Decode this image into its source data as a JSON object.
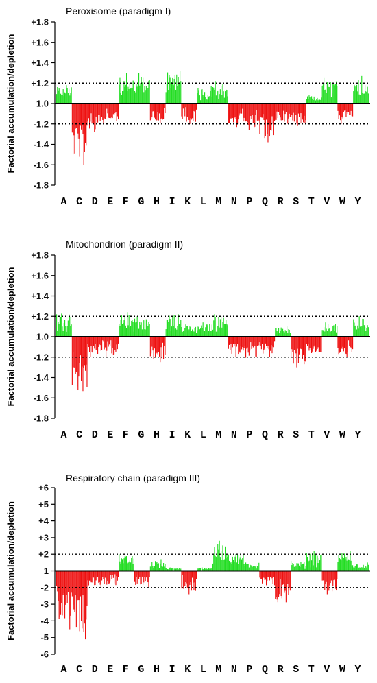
{
  "chart_data": [
    {
      "type": "bar",
      "title": "Peroxisome (paradigm I)",
      "ylabel": "Factorial accumulation/depletion",
      "xlabel": "",
      "y_tick_labels": [
        "+1.8",
        "+1.6",
        "+1.4",
        "+1.2",
        "1.0",
        "-1.2",
        "-1.4",
        "-1.6",
        "-1.8"
      ],
      "y_tick_values": [
        1.8,
        1.6,
        1.4,
        1.2,
        1.0,
        -1.2,
        -1.4,
        -1.6,
        -1.8
      ],
      "thresholds": [
        1.2,
        -1.2
      ],
      "baseline": 1.0,
      "categories": [
        "A",
        "C",
        "D",
        "E",
        "F",
        "G",
        "H",
        "I",
        "K",
        "L",
        "M",
        "N",
        "P",
        "Q",
        "R",
        "S",
        "T",
        "V",
        "W",
        "Y"
      ],
      "category_peak_values": [
        1.18,
        -1.6,
        -1.28,
        -1.16,
        1.3,
        1.3,
        -1.14,
        1.36,
        -1.2,
        1.17,
        1.22,
        -1.23,
        -1.3,
        -1.38,
        -1.18,
        -1.22,
        1.08,
        1.25,
        -1.2,
        1.27
      ],
      "colors": {
        "accumulation": "#22dd22",
        "depletion": "#ee1111"
      }
    },
    {
      "type": "bar",
      "title": "Mitochondrion (paradigm II)",
      "ylabel": "Factorial accumulation/depletion",
      "xlabel": "",
      "y_tick_labels": [
        "+1.8",
        "+1.6",
        "+1.4",
        "+1.2",
        "1.0",
        "-1.2",
        "-1.4",
        "-1.6",
        "-1.8"
      ],
      "y_tick_values": [
        1.8,
        1.6,
        1.4,
        1.2,
        1.0,
        -1.2,
        -1.4,
        -1.6,
        -1.8
      ],
      "thresholds": [
        1.2,
        -1.2
      ],
      "baseline": 1.0,
      "categories": [
        "A",
        "C",
        "D",
        "E",
        "F",
        "G",
        "H",
        "I",
        "K",
        "L",
        "M",
        "N",
        "P",
        "Q",
        "R",
        "S",
        "T",
        "V",
        "W",
        "Y"
      ],
      "category_peak_values": [
        1.27,
        -1.6,
        -1.15,
        -1.14,
        1.24,
        1.2,
        -1.25,
        1.25,
        1.12,
        1.14,
        1.25,
        -1.16,
        -1.24,
        -1.2,
        1.1,
        -1.3,
        -1.12,
        1.14,
        -1.2,
        1.2
      ],
      "colors": {
        "accumulation": "#22dd22",
        "depletion": "#ee1111"
      }
    },
    {
      "type": "bar",
      "title": "Respiratory chain (paradigm III)",
      "ylabel": "Factorial accumulation/depletion",
      "xlabel": "",
      "y_tick_labels": [
        "+6",
        "+5",
        "+4",
        "+3",
        "+2",
        "1",
        "-2",
        "-3",
        "-4",
        "-5",
        "-6"
      ],
      "y_tick_values": [
        6,
        5,
        4,
        3,
        2,
        1,
        -2,
        -3,
        -4,
        -5,
        -6
      ],
      "thresholds": [
        2,
        -2
      ],
      "baseline": 1,
      "categories": [
        "A",
        "C",
        "D",
        "E",
        "F",
        "G",
        "H",
        "I",
        "K",
        "L",
        "M",
        "N",
        "P",
        "Q",
        "R",
        "S",
        "T",
        "V",
        "W",
        "Y"
      ],
      "category_peak_values": [
        -4.5,
        -5.1,
        -1.9,
        -2.0,
        2.0,
        -1.9,
        1.7,
        1.2,
        -2.4,
        1.2,
        2.8,
        2.2,
        1.6,
        -1.9,
        -3.1,
        1.6,
        2.2,
        -2.4,
        2.2,
        1.5
      ],
      "colors": {
        "accumulation": "#22dd22",
        "depletion": "#ee1111"
      }
    }
  ]
}
